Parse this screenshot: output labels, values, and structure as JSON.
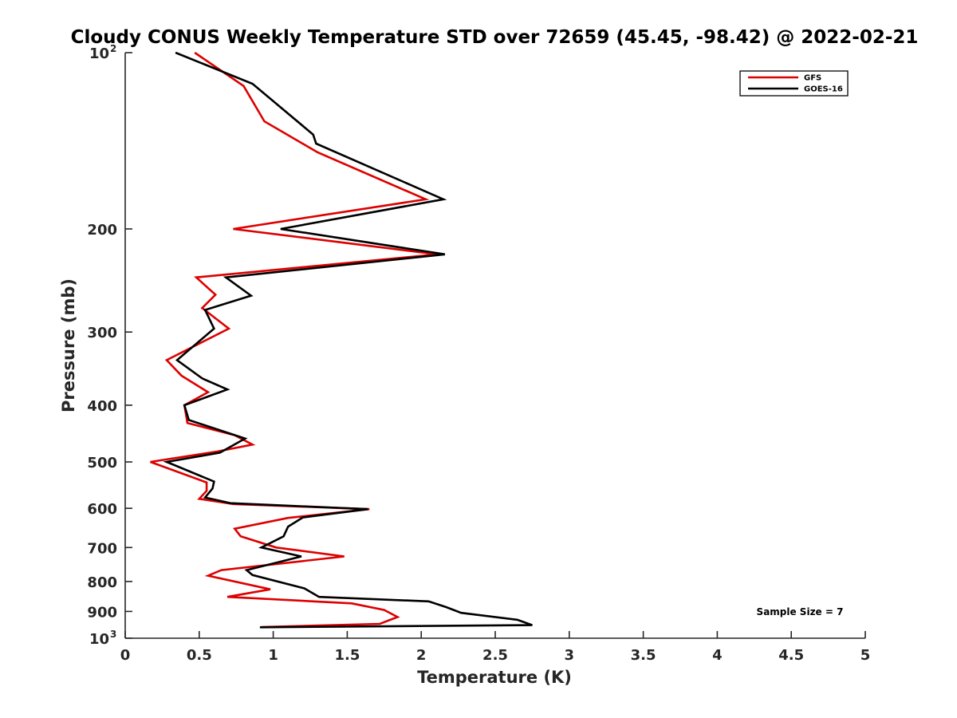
{
  "chart_data": {
    "type": "line",
    "title": "Cloudy CONUS Weekly Temperature STD over 72659 (45.45, -98.42) @ 2022-02-21",
    "xlabel": "Temperature (K)",
    "ylabel": "Pressure (mb)",
    "xlim": [
      0,
      5
    ],
    "ylim": [
      100,
      1000
    ],
    "y_scale": "log",
    "y_reversed": true,
    "x_ticks": [
      "0",
      "0.5",
      "1",
      "1.5",
      "2",
      "2.5",
      "3",
      "3.5",
      "4",
      "4.5",
      "5"
    ],
    "y_ticks": [
      {
        "value": 100,
        "label": "10",
        "exp": "2"
      },
      {
        "value": 200,
        "label": "200"
      },
      {
        "value": 300,
        "label": "300"
      },
      {
        "value": 400,
        "label": "400"
      },
      {
        "value": 500,
        "label": "500"
      },
      {
        "value": 600,
        "label": "600"
      },
      {
        "value": 700,
        "label": "700"
      },
      {
        "value": 800,
        "label": "800"
      },
      {
        "value": 900,
        "label": "900"
      },
      {
        "value": 1000,
        "label": "10",
        "exp": "3"
      }
    ],
    "grid": false,
    "legend_position": "top-right",
    "annotation": "Sample Size = 7",
    "series": [
      {
        "name": "GFS",
        "color": "#dd0000",
        "points": [
          [
            0.47,
            100
          ],
          [
            0.8,
            114
          ],
          [
            0.94,
            131
          ],
          [
            1.3,
            148
          ],
          [
            2.03,
            178
          ],
          [
            0.73,
            200
          ],
          [
            2.11,
            221
          ],
          [
            0.48,
            242
          ],
          [
            0.61,
            259
          ],
          [
            0.52,
            273
          ],
          [
            0.7,
            296
          ],
          [
            0.28,
            335
          ],
          [
            0.38,
            356
          ],
          [
            0.56,
            380
          ],
          [
            0.4,
            400
          ],
          [
            0.42,
            429
          ],
          [
            0.74,
            450
          ],
          [
            0.86,
            467
          ],
          [
            0.62,
            480
          ],
          [
            0.17,
            500
          ],
          [
            0.55,
            542
          ],
          [
            0.55,
            560
          ],
          [
            0.5,
            578
          ],
          [
            0.73,
            590
          ],
          [
            1.65,
            602
          ],
          [
            1.1,
            623
          ],
          [
            0.74,
            650
          ],
          [
            0.78,
            670
          ],
          [
            1.02,
            700
          ],
          [
            1.48,
            725
          ],
          [
            0.65,
            765
          ],
          [
            0.56,
            782
          ],
          [
            0.98,
            825
          ],
          [
            0.69,
            850
          ],
          [
            1.53,
            872
          ],
          [
            1.75,
            895
          ],
          [
            1.84,
            920
          ],
          [
            1.72,
            945
          ],
          [
            0.92,
            957
          ]
        ]
      },
      {
        "name": "GOES-16",
        "color": "#000000",
        "points": [
          [
            0.34,
            100
          ],
          [
            0.86,
            113
          ],
          [
            1.27,
            138
          ],
          [
            1.29,
            143
          ],
          [
            2.15,
            178
          ],
          [
            1.05,
            200
          ],
          [
            2.16,
            221
          ],
          [
            0.68,
            242
          ],
          [
            0.85,
            260
          ],
          [
            0.54,
            275
          ],
          [
            0.6,
            296
          ],
          [
            0.35,
            335
          ],
          [
            0.52,
            360
          ],
          [
            0.69,
            376
          ],
          [
            0.4,
            400
          ],
          [
            0.43,
            424
          ],
          [
            0.81,
            456
          ],
          [
            0.64,
            482
          ],
          [
            0.28,
            500
          ],
          [
            0.6,
            540
          ],
          [
            0.59,
            555
          ],
          [
            0.54,
            575
          ],
          [
            0.71,
            588
          ],
          [
            1.64,
            602
          ],
          [
            1.2,
            622
          ],
          [
            1.1,
            645
          ],
          [
            1.07,
            670
          ],
          [
            0.92,
            700
          ],
          [
            1.19,
            725
          ],
          [
            0.82,
            765
          ],
          [
            0.86,
            780
          ],
          [
            1.21,
            822
          ],
          [
            1.31,
            850
          ],
          [
            2.05,
            865
          ],
          [
            2.17,
            885
          ],
          [
            2.27,
            905
          ],
          [
            2.65,
            930
          ],
          [
            2.75,
            950
          ],
          [
            0.91,
            958
          ]
        ]
      }
    ]
  }
}
